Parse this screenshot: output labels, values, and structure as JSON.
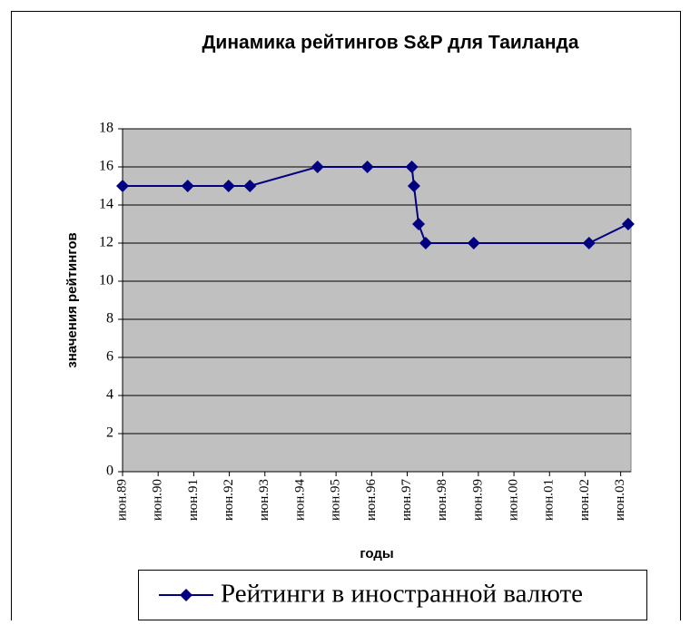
{
  "chart_data": {
    "type": "line",
    "title": "Динамика рейтингов S&P для Таиланда",
    "x_label": "годы",
    "y_label": "значения рейтингов",
    "x": [
      1989.42,
      1991.25,
      1992.4,
      1993.0,
      1994.9,
      1996.3,
      1997.55,
      1997.61,
      1997.74,
      1997.94,
      1999.29,
      2002.53,
      2003.63
    ],
    "series": [
      {
        "name": "Рейтинги в иностранной валюте",
        "color": "#000080",
        "values": [
          15,
          15,
          15,
          15,
          16,
          16,
          16,
          15,
          13,
          12,
          12,
          12,
          13
        ]
      }
    ],
    "xlim": [
      1989.42,
      2003.71
    ],
    "xticks": [
      {
        "value": 1989.42,
        "label": "июн.89"
      },
      {
        "value": 1990.42,
        "label": "июн.90"
      },
      {
        "value": 1991.42,
        "label": "июн.91"
      },
      {
        "value": 1992.42,
        "label": "июн.92"
      },
      {
        "value": 1993.42,
        "label": "июн.93"
      },
      {
        "value": 1994.42,
        "label": "июн.94"
      },
      {
        "value": 1995.42,
        "label": "июн.95"
      },
      {
        "value": 1996.42,
        "label": "июн.96"
      },
      {
        "value": 1997.42,
        "label": "июн.97"
      },
      {
        "value": 1998.42,
        "label": "июн.98"
      },
      {
        "value": 1999.42,
        "label": "июн.99"
      },
      {
        "value": 2000.42,
        "label": "июн.00"
      },
      {
        "value": 2001.42,
        "label": "июн.01"
      },
      {
        "value": 2002.42,
        "label": "июн.02"
      },
      {
        "value": 2003.42,
        "label": "июн.03"
      }
    ],
    "ylim": [
      0,
      18
    ],
    "yticks": [
      0,
      2,
      4,
      6,
      8,
      10,
      12,
      14,
      16,
      18
    ],
    "grid": true,
    "legend": "bottom"
  }
}
